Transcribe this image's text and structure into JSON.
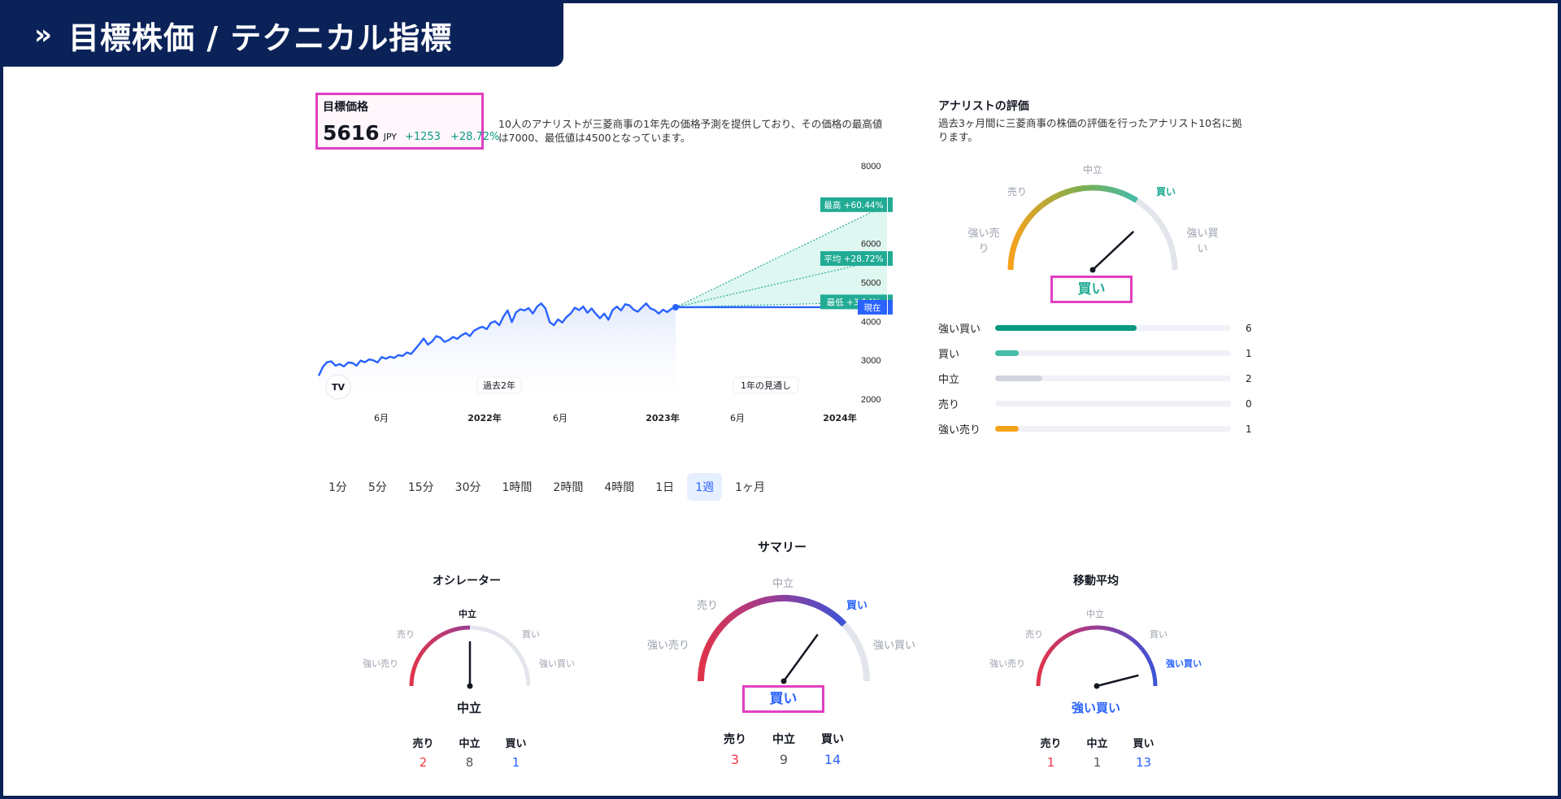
{
  "header": {
    "chevron": "»",
    "title": "目標株価 / テクニカル指標"
  },
  "target": {
    "title": "目標価格",
    "price": "5616",
    "currency": "JPY",
    "change": "+1253",
    "change_pct": "+28.72%"
  },
  "forecast_desc": "10人のアナリストが三菱商事の1年先の価格予測を提供しており、その価格の最高値は7000、最低値は4500となっています。",
  "chart_data": {
    "type": "line",
    "x_tick_labels": [
      "6月",
      "2022年",
      "6月",
      "2023年",
      "6月",
      "2024年"
    ],
    "y_ticks": [
      2000,
      3000,
      4000,
      5000,
      6000,
      8000
    ],
    "ylim": [
      2000,
      8000
    ],
    "history": [
      2600,
      2830,
      2950,
      2970,
      2860,
      2900,
      2840,
      2940,
      2930,
      2860,
      2990,
      2950,
      3020,
      3000,
      2940,
      3080,
      3040,
      3090,
      3060,
      3130,
      3110,
      3200,
      3160,
      3290,
      3420,
      3560,
      3400,
      3480,
      3620,
      3580,
      3470,
      3520,
      3600,
      3550,
      3640,
      3700,
      3620,
      3760,
      3820,
      3860,
      3800,
      3960,
      4000,
      3900,
      4120,
      4280,
      3980,
      4230,
      4310,
      4280,
      4340,
      4200,
      4380,
      4460,
      4330,
      3980,
      3900,
      4050,
      3970,
      4110,
      4200,
      4350,
      4290,
      4380,
      4220,
      4330,
      4190,
      4080,
      4200,
      4040,
      4290,
      4380,
      4280,
      4440,
      4410,
      4300,
      4250,
      4360,
      4460,
      4330,
      4290,
      4200,
      4300,
      4240,
      4320,
      4363
    ],
    "forecast": {
      "high": {
        "label": "最高 +60.44%",
        "value": "7000",
        "y": 7000
      },
      "avg": {
        "label": "平均 +28.72%",
        "value": "5616",
        "y": 5616
      },
      "low": {
        "label": "最低 +3.14%",
        "value": "4500",
        "y": 4500
      },
      "current": {
        "label": "現在",
        "value": "4363",
        "y": 4363
      }
    },
    "period_past": "過去2年",
    "period_future": "1年の見通し",
    "logo": "TV",
    "colors": {
      "line": "#2962ff",
      "forecast": "#22ab94",
      "current": "#2962ff"
    }
  },
  "timeframes": [
    "1分",
    "5分",
    "15分",
    "30分",
    "1時間",
    "2時間",
    "4時間",
    "1日",
    "1週",
    "1ヶ月"
  ],
  "active_timeframe": "1週",
  "analyst": {
    "title": "アナリストの評価",
    "desc": "過去3ヶ月間に三菱商事の株価の評価を行ったアナリスト10名に拠ります。",
    "labels": {
      "neutral": "中立",
      "sell": "売り",
      "buy": "買い",
      "strong_sell": "強い売り",
      "strong_buy": "強い買い"
    },
    "verdict": "買い",
    "ratings": [
      {
        "label": "強い買い",
        "count": "6",
        "fraction": 0.6,
        "color": "#089981"
      },
      {
        "label": "買い",
        "count": "1",
        "fraction": 0.1,
        "color": "#45bca7"
      },
      {
        "label": "中立",
        "count": "2",
        "fraction": 0.2,
        "color": "#d1d4dc"
      },
      {
        "label": "売り",
        "count": "0",
        "fraction": 0.0,
        "color": "#f7525f"
      },
      {
        "label": "強い売り",
        "count": "1",
        "fraction": 0.1,
        "color": "#f7a21b"
      }
    ]
  },
  "summary": {
    "title": "サマリー",
    "labels": {
      "neutral": "中立",
      "sell": "売り",
      "buy": "買い",
      "strong_sell": "強い売り",
      "strong_buy": "強い買い"
    },
    "verdict": "買い",
    "counts": {
      "sell_label": "売り",
      "neutral_label": "中立",
      "buy_label": "買い",
      "sell": "3",
      "neutral": "9",
      "buy": "14"
    }
  },
  "oscillator": {
    "title": "オシレーター",
    "labels": {
      "neutral": "中立",
      "sell": "売り",
      "buy": "買い",
      "strong_sell": "強い売り",
      "strong_buy": "強い買い"
    },
    "verdict": "中立",
    "counts": {
      "sell_label": "売り",
      "neutral_label": "中立",
      "buy_label": "買い",
      "sell": "2",
      "neutral": "8",
      "buy": "1"
    }
  },
  "moving_average": {
    "title": "移動平均",
    "labels": {
      "neutral": "中立",
      "sell": "売り",
      "buy": "買い",
      "strong_sell": "強い売り",
      "strong_buy": "強い買い"
    },
    "verdict": "強い買い",
    "counts": {
      "sell_label": "売り",
      "neutral_label": "中立",
      "buy_label": "買い",
      "sell": "1",
      "neutral": "1",
      "buy": "13"
    }
  }
}
